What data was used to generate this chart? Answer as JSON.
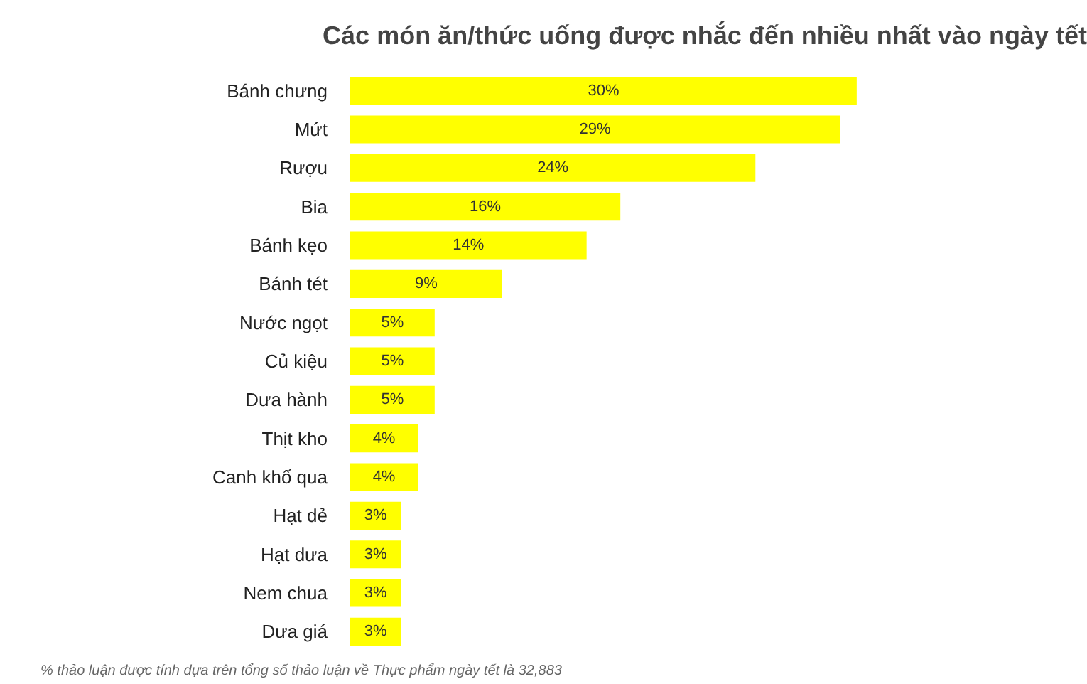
{
  "chart_data": {
    "type": "bar",
    "orientation": "horizontal",
    "title": "Các món ăn/thức uống được nhắc đến nhiều nhất vào ngày tết",
    "categories": [
      "Bánh chưng",
      "Mứt",
      "Rượu",
      "Bia",
      "Bánh kẹo",
      "Bánh tét",
      "Nước ngọt",
      "Củ kiệu",
      "Dưa hành",
      "Thịt kho",
      "Canh khổ qua",
      "Hạt dẻ",
      "Hạt dưa",
      "Nem chua",
      "Dưa giá"
    ],
    "values": [
      30,
      29,
      24,
      16,
      14,
      9,
      5,
      5,
      5,
      4,
      4,
      3,
      3,
      3,
      3
    ],
    "value_labels": [
      "30%",
      "29%",
      "24%",
      "16%",
      "14%",
      "9%",
      "5%",
      "5%",
      "5%",
      "4%",
      "4%",
      "3%",
      "3%",
      "3%",
      "3%"
    ],
    "color": "#ffff00",
    "annotations": [
      "% thảo luận được tính dựa trên tổng số thảo luận về Thực phẩm ngày tết là 32,883"
    ]
  }
}
